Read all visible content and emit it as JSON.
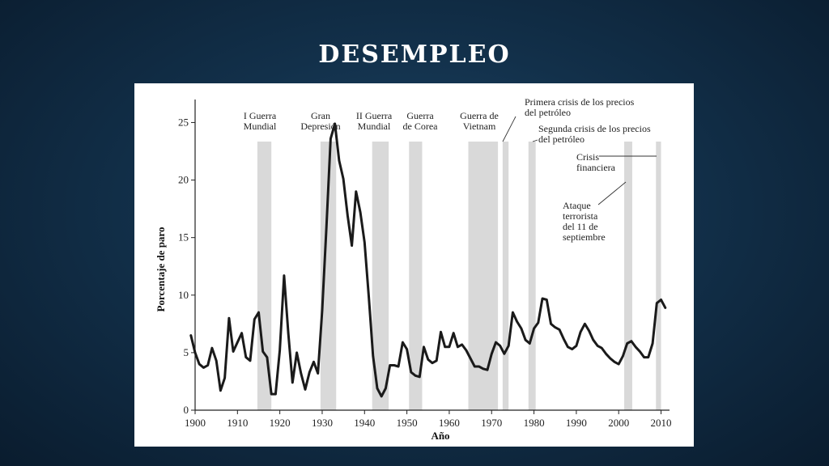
{
  "slide": {
    "title": "DESEMPLEO"
  },
  "colors": {
    "background": "#12304a",
    "band": "#d9d9d9",
    "line": "#1a1a1a",
    "title": "#ffffff"
  },
  "chart_data": {
    "type": "line",
    "title": "",
    "xlabel": "Año",
    "ylabel": "Porcentaje de paro",
    "xlim": [
      1900,
      2012
    ],
    "ylim": [
      0,
      27
    ],
    "xticks": [
      1900,
      1910,
      1920,
      1930,
      1940,
      1950,
      1960,
      1970,
      1980,
      1990,
      2000,
      2010
    ],
    "yticks": [
      0,
      5,
      10,
      15,
      20,
      25
    ],
    "grid": false,
    "series": [
      {
        "name": "",
        "x": [
          1899,
          1900,
          1901,
          1902,
          1903,
          1904,
          1905,
          1906,
          1907,
          1908,
          1909,
          1910,
          1911,
          1912,
          1913,
          1914,
          1915,
          1916,
          1917,
          1918,
          1919,
          1920,
          1921,
          1922,
          1923,
          1924,
          1925,
          1926,
          1927,
          1928,
          1929,
          1930,
          1931,
          1932,
          1933,
          1934,
          1935,
          1936,
          1937,
          1938,
          1939,
          1940,
          1941,
          1942,
          1943,
          1944,
          1945,
          1946,
          1947,
          1948,
          1949,
          1950,
          1951,
          1952,
          1953,
          1954,
          1955,
          1956,
          1957,
          1958,
          1959,
          1960,
          1961,
          1962,
          1963,
          1964,
          1965,
          1966,
          1967,
          1968,
          1969,
          1970,
          1971,
          1972,
          1973,
          1974,
          1975,
          1976,
          1977,
          1978,
          1979,
          1980,
          1981,
          1982,
          1983,
          1984,
          1985,
          1986,
          1987,
          1988,
          1989,
          1990,
          1991,
          1992,
          1993,
          1994,
          1995,
          1996,
          1997,
          1998,
          1999,
          2000,
          2001,
          2002,
          2003,
          2004,
          2005,
          2006,
          2007,
          2008,
          2009,
          2010,
          2011
        ],
        "y": [
          6.5,
          5,
          4,
          3.7,
          3.9,
          5.4,
          4.3,
          1.7,
          2.8,
          8,
          5.1,
          5.9,
          6.7,
          4.6,
          4.3,
          7.9,
          8.5,
          5.1,
          4.6,
          1.4,
          1.4,
          5.2,
          11.7,
          6.7,
          2.4,
          5,
          3.2,
          1.8,
          3.3,
          4.2,
          3.2,
          8.7,
          15.9,
          23.6,
          24.9,
          21.7,
          20.1,
          16.9,
          14.3,
          19,
          17.2,
          14.6,
          9.9,
          4.7,
          1.9,
          1.2,
          1.9,
          3.9,
          3.9,
          3.8,
          5.9,
          5.3,
          3.3,
          3,
          2.9,
          5.5,
          4.4,
          4.1,
          4.3,
          6.8,
          5.5,
          5.5,
          6.7,
          5.5,
          5.7,
          5.2,
          4.5,
          3.8,
          3.8,
          3.6,
          3.5,
          4.9,
          5.9,
          5.6,
          4.9,
          5.6,
          8.5,
          7.7,
          7.1,
          6.1,
          5.8,
          7.1,
          7.6,
          9.7,
          9.6,
          7.5,
          7.2,
          7,
          6.2,
          5.5,
          5.3,
          5.6,
          6.8,
          7.5,
          6.9,
          6.1,
          5.6,
          5.4,
          4.9,
          4.5,
          4.2,
          4,
          4.7,
          5.8,
          6,
          5.5,
          5.1,
          4.6,
          4.6,
          5.8,
          9.3,
          9.6,
          8.9
        ]
      }
    ],
    "shaded_periods": [
      {
        "label_lines": [
          "I Guerra",
          "Mundial"
        ],
        "start": 1914.7,
        "end": 1918.0
      },
      {
        "label_lines": [
          "Gran",
          "Depresión"
        ],
        "start": 1929.6,
        "end": 1933.3
      },
      {
        "label_lines": [
          "II Guerra",
          "Mundial"
        ],
        "start": 1941.8,
        "end": 1945.7
      },
      {
        "label_lines": [
          "Guerra",
          "de Corea"
        ],
        "start": 1950.5,
        "end": 1953.6
      },
      {
        "label_lines": [
          "Guerra de",
          "Vietnam"
        ],
        "start": 1964.5,
        "end": 1971.5
      },
      {
        "label_lines": [
          "Primera crisis de los precios",
          "del petróleo"
        ],
        "start": 1972.6,
        "end": 1974.0
      },
      {
        "label_lines": [
          "Segunda crisis de los precios",
          "del petróleo"
        ],
        "start": 1978.7,
        "end": 1980.4
      },
      {
        "label_lines": [
          "Ataque",
          "terrorista",
          "del 11 de",
          "septiembre"
        ],
        "start": 2001.3,
        "end": 2003.2
      },
      {
        "label_lines": [
          "Crisis",
          "financiera"
        ],
        "start": 2008.8,
        "end": 2010.0
      }
    ]
  }
}
